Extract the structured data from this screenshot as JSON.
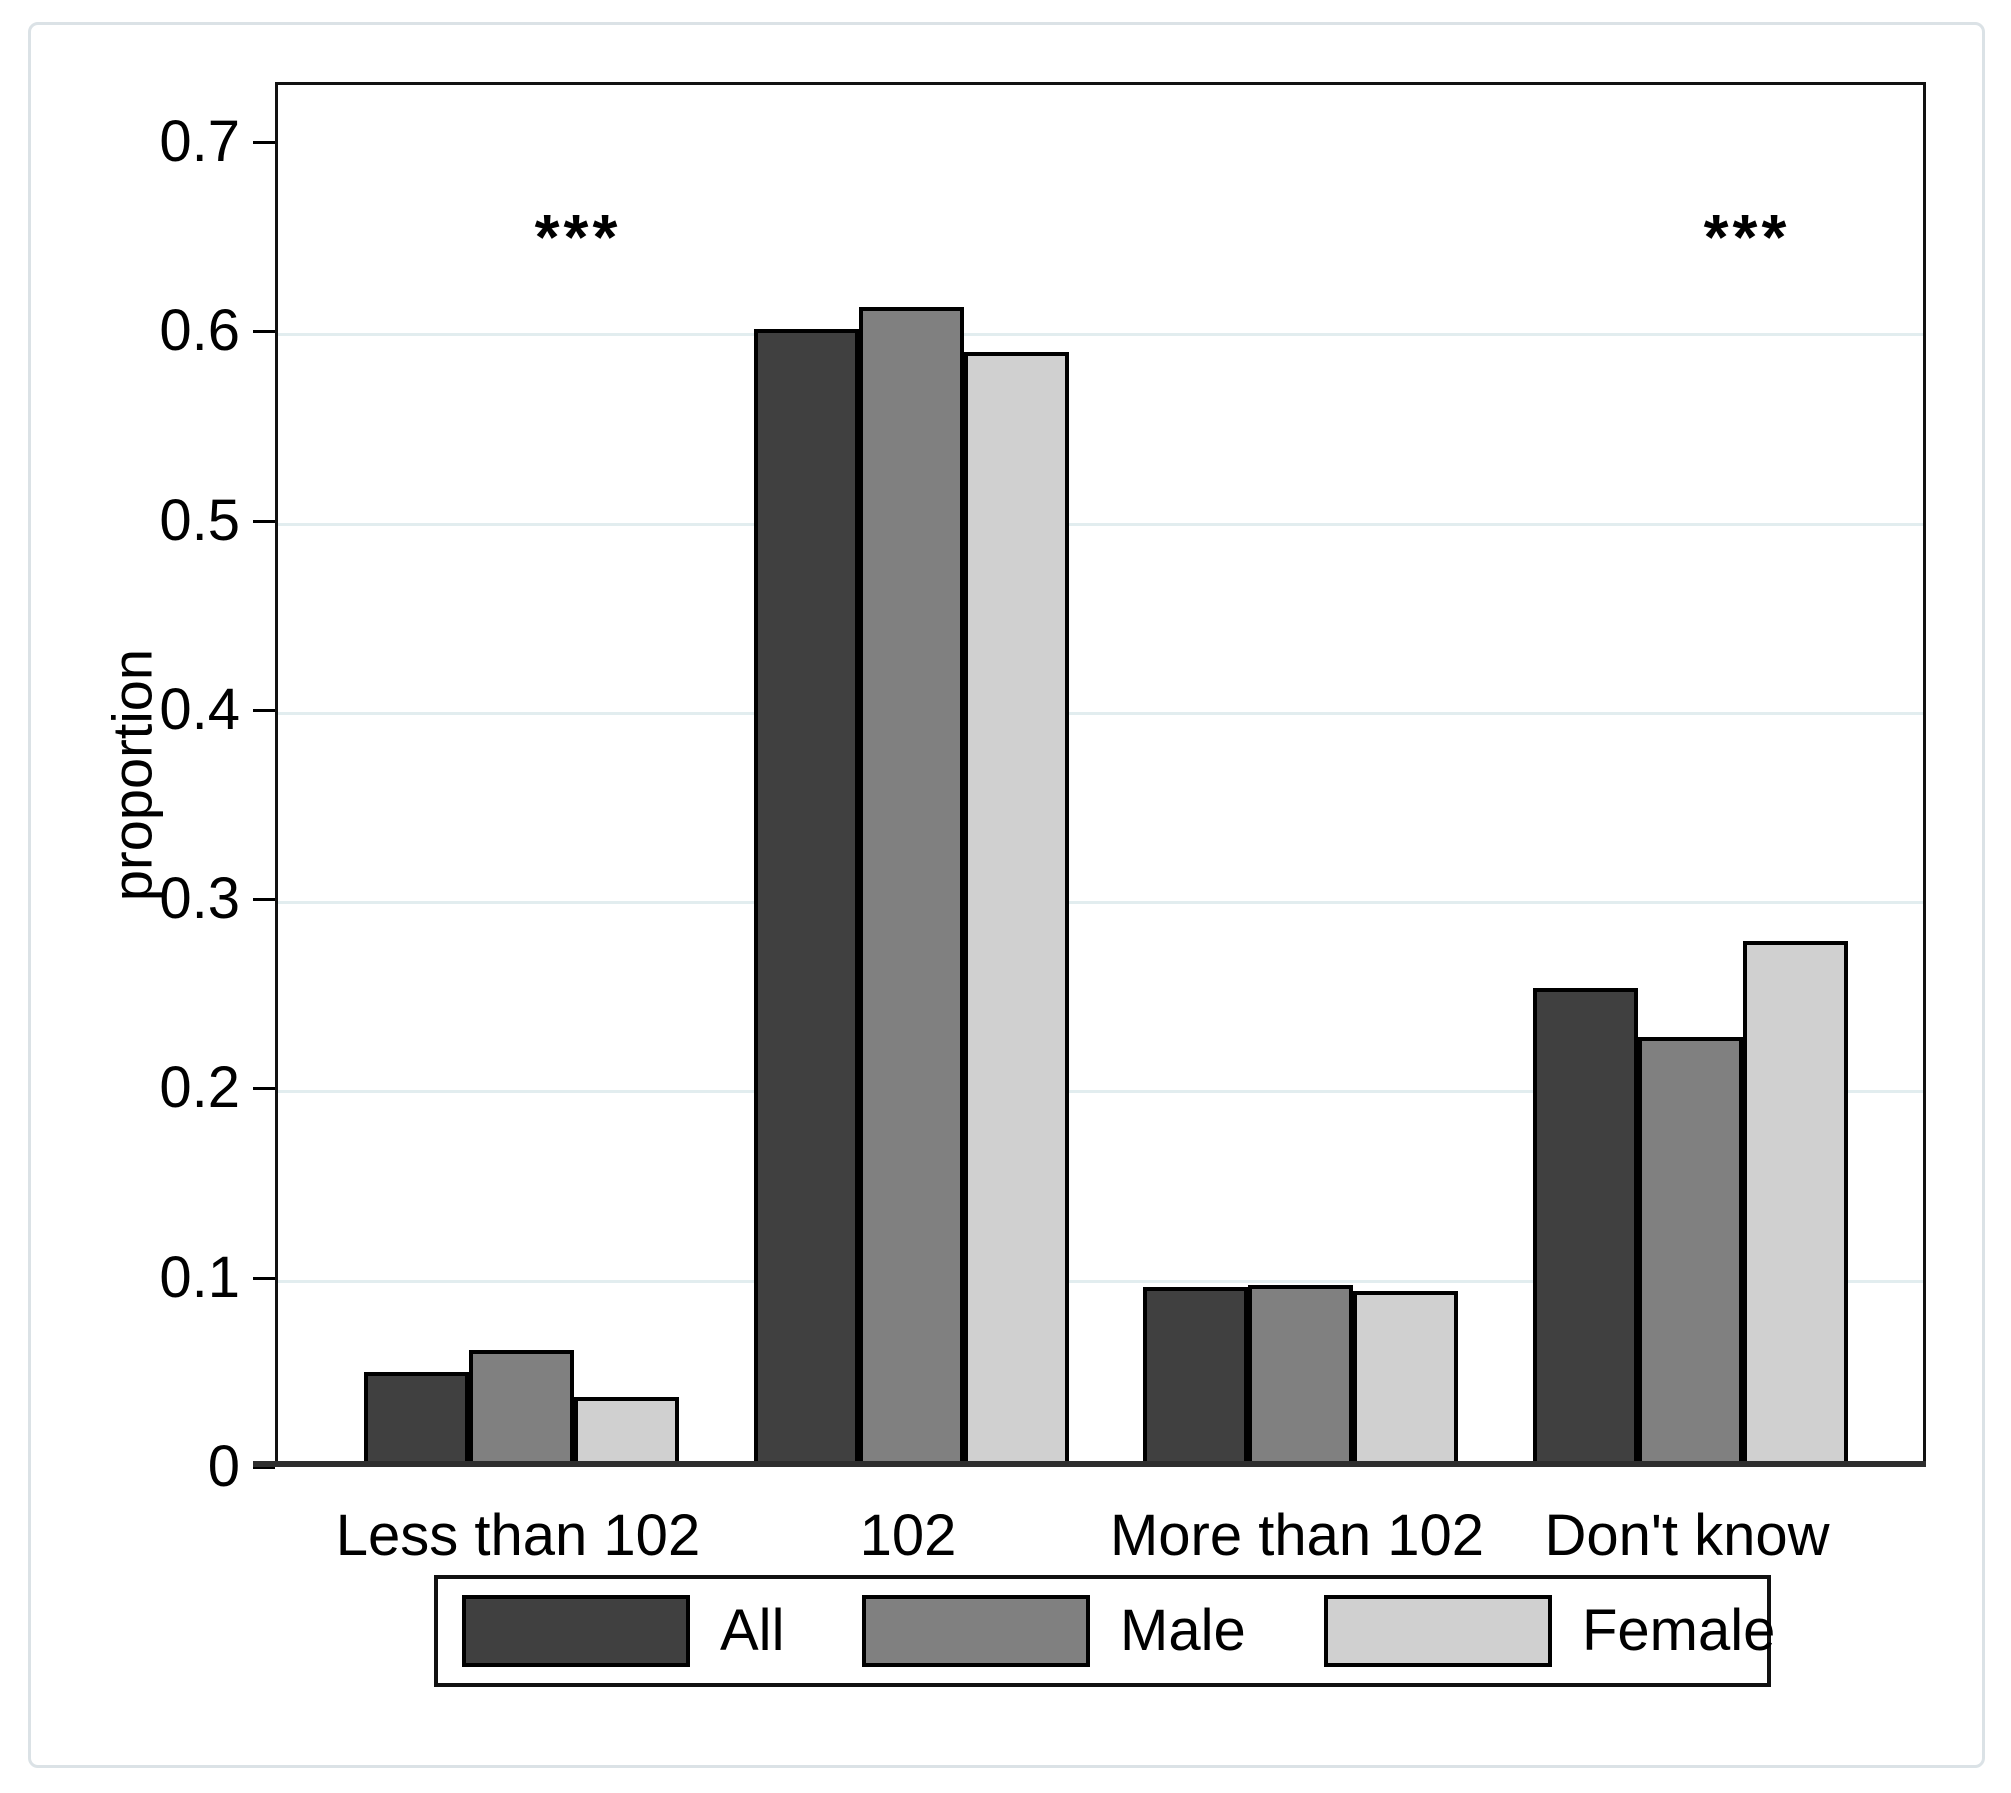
{
  "chart_data": {
    "type": "bar",
    "title": "",
    "categories": [
      "Less than 102",
      "102",
      "More than 102",
      "Don't know"
    ],
    "series": [
      {
        "name": "All",
        "color": "#404040",
        "values": [
          0.05,
          0.601,
          0.095,
          0.253
        ]
      },
      {
        "name": "Male",
        "color": "#808080",
        "values": [
          0.062,
          0.613,
          0.096,
          0.227
        ]
      },
      {
        "name": "Female",
        "color": "#d0d0d0",
        "values": [
          0.037,
          0.589,
          0.093,
          0.278
        ]
      }
    ],
    "xlabel": "",
    "ylabel": "proportion",
    "ylim": [
      0,
      0.73
    ],
    "yticks": [
      {
        "value": 0.0,
        "label": "0"
      },
      {
        "value": 0.1,
        "label": "0.1"
      },
      {
        "value": 0.2,
        "label": "0.2"
      },
      {
        "value": 0.3,
        "label": "0.3"
      },
      {
        "value": 0.4,
        "label": "0.4"
      },
      {
        "value": 0.5,
        "label": "0.5"
      },
      {
        "value": 0.6,
        "label": "0.6"
      },
      {
        "value": 0.7,
        "label": "0.7"
      }
    ],
    "gridline_values": [
      0.1,
      0.2,
      0.3,
      0.4,
      0.5,
      0.6
    ],
    "gridline_color": "#e2edef",
    "annotations": [
      {
        "text": "***",
        "category_index": 0
      },
      {
        "text": "***",
        "category_index": 3
      }
    ],
    "legend": {
      "position": "bottom",
      "entries": [
        "All",
        "Male",
        "Female"
      ]
    }
  }
}
